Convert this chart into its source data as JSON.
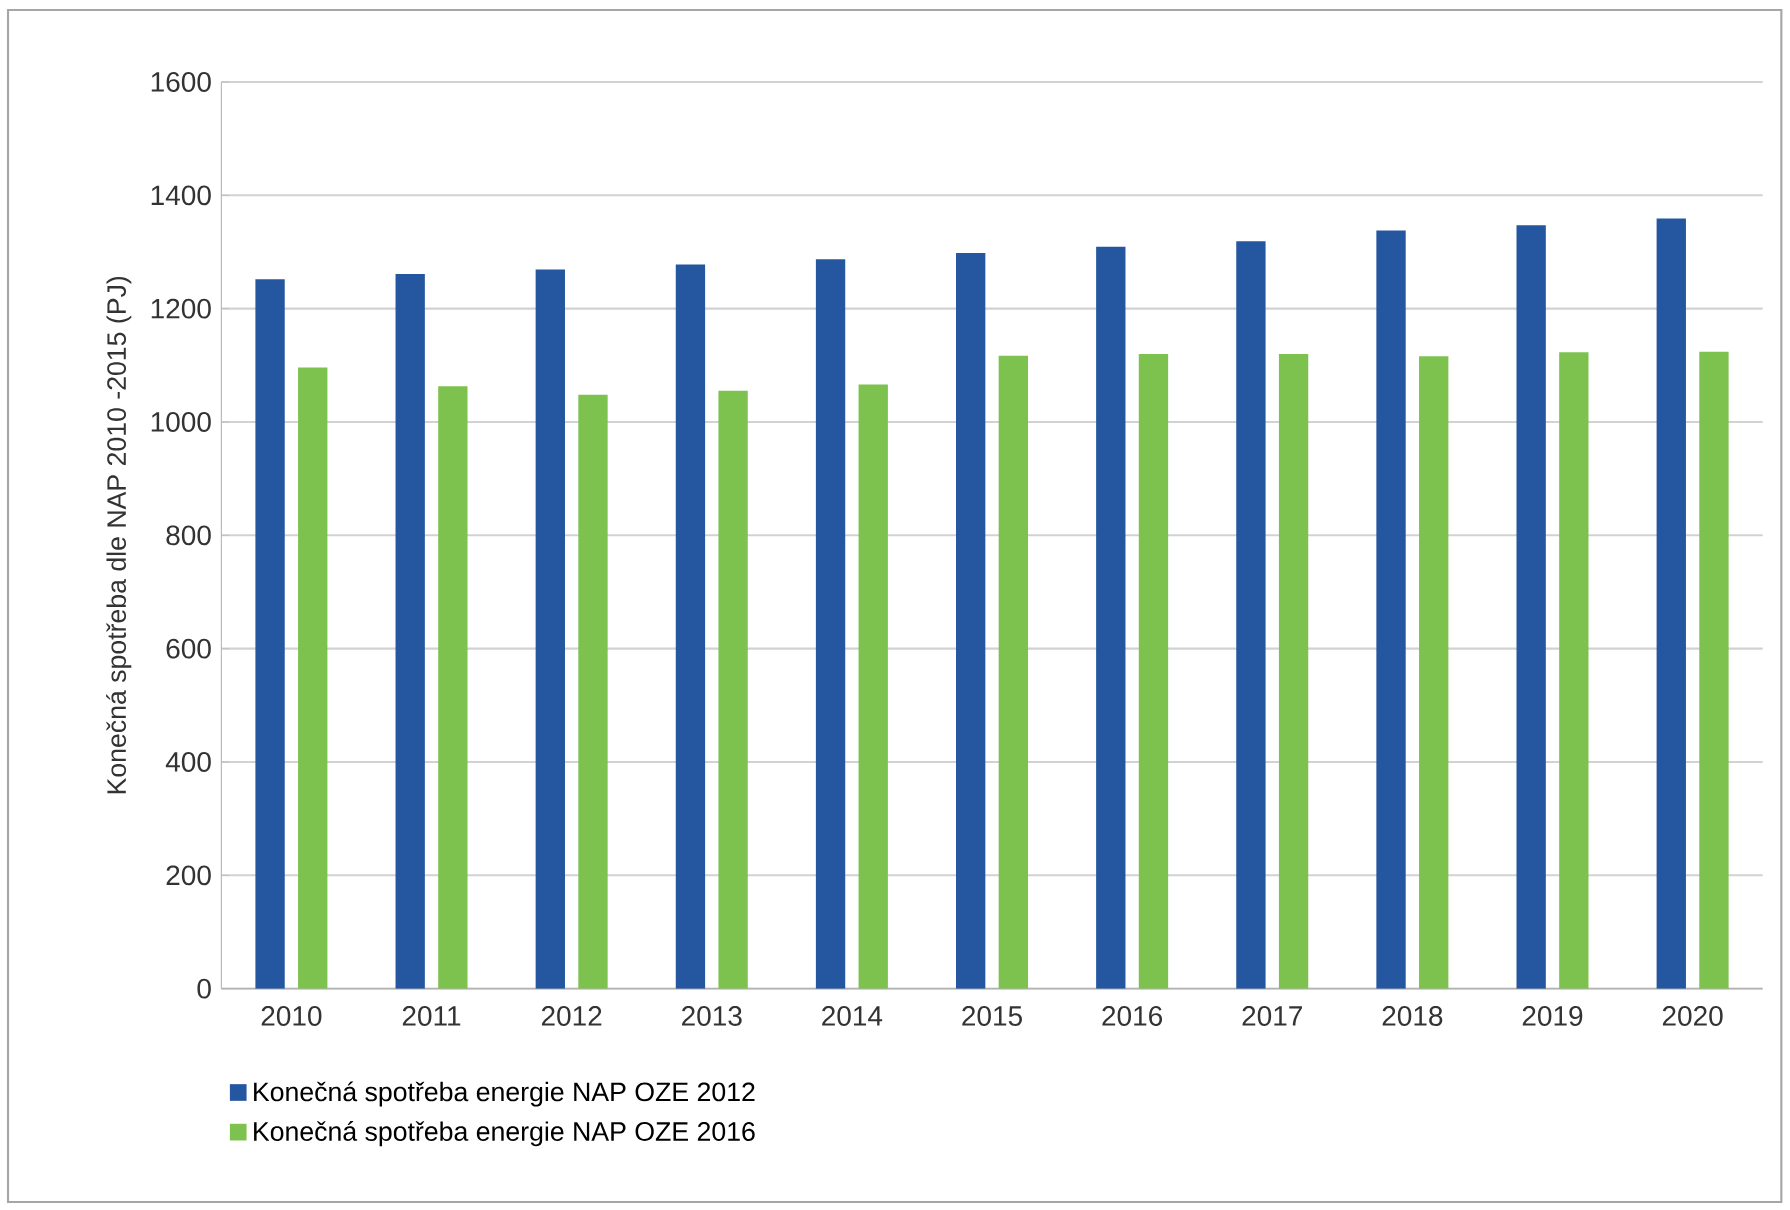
{
  "chart_data": {
    "type": "bar",
    "ylabel": "Konečná spotřeba dle NAP 2010 -2015 (PJ)",
    "categories": [
      "2010",
      "2011",
      "2012",
      "2013",
      "2014",
      "2015",
      "2016",
      "2017",
      "2018",
      "2019",
      "2020"
    ],
    "series": [
      {
        "name": "Konečná spotřeba energie NAP OZE 2012",
        "color": "#2457a0",
        "values": [
          1252,
          1261,
          1269,
          1278,
          1287,
          1298,
          1309,
          1319,
          1338,
          1347,
          1359
        ]
      },
      {
        "name": "Konečná spotřeba energie NAP OZE 2016",
        "color": "#7dc24f",
        "values": [
          1096,
          1063,
          1048,
          1055,
          1066,
          1117,
          1120,
          1120,
          1116,
          1123,
          1124
        ]
      }
    ],
    "ylim": [
      0,
      1600
    ],
    "yticks": [
      0,
      200,
      400,
      600,
      800,
      1000,
      1200,
      1400,
      1600
    ],
    "grid": "y",
    "legend": "bottom left"
  }
}
